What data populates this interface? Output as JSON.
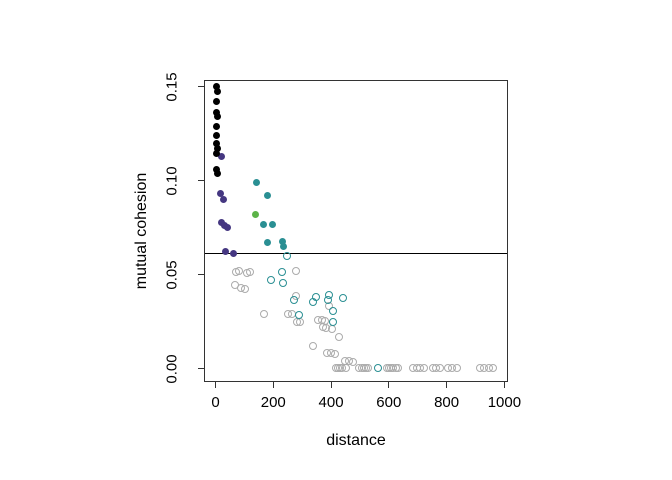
{
  "figure": {
    "background": "#ffffff",
    "frame_color": "#333333",
    "threshold_line_color": "#000000"
  },
  "chart_data": {
    "type": "scatter",
    "title": "",
    "xlabel": "distance",
    "ylabel": "mutual cohesion",
    "xlim": [
      -40,
      1015
    ],
    "ylim": [
      -0.0075,
      0.1535
    ],
    "x_ticks": [
      0,
      200,
      400,
      600,
      800,
      1000
    ],
    "x_tick_labels": [
      "0",
      "200",
      "400",
      "600",
      "800",
      "1000"
    ],
    "y_ticks": [
      0.0,
      0.05,
      0.1,
      0.15
    ],
    "y_tick_labels": [
      "0.00",
      "0.05",
      "0.10",
      "0.15"
    ],
    "grid": false,
    "legend": "none",
    "hline_y": 0.0613,
    "series": [
      {
        "name": "gray-open",
        "marker": "open",
        "color": "#ABABAB",
        "points": [
          [
            72,
            0.0515
          ],
          [
            80,
            0.0517
          ],
          [
            108,
            0.051
          ],
          [
            118,
            0.0512
          ],
          [
            280,
            0.0517
          ],
          [
            66,
            0.0444
          ],
          [
            87,
            0.0429
          ],
          [
            103,
            0.0425
          ],
          [
            167,
            0.029
          ],
          [
            252,
            0.029
          ],
          [
            264,
            0.029
          ],
          [
            282,
            0.0248
          ],
          [
            294,
            0.0248
          ],
          [
            280,
            0.0385
          ],
          [
            356,
            0.0259
          ],
          [
            368,
            0.026
          ],
          [
            379,
            0.0254
          ],
          [
            371,
            0.0223
          ],
          [
            383,
            0.0218
          ],
          [
            394,
            0.0331
          ],
          [
            405,
            0.021
          ],
          [
            426,
            0.0165
          ],
          [
            339,
            0.0122
          ],
          [
            387,
            0.0082
          ],
          [
            399,
            0.0082
          ],
          [
            414,
            0.0078
          ],
          [
            448,
            0.004
          ],
          [
            462,
            0.004
          ],
          [
            476,
            0.0037
          ],
          [
            417,
            0.0005
          ],
          [
            424,
            0.0005
          ],
          [
            431,
            0.0005
          ],
          [
            438,
            0.0005
          ],
          [
            453,
            0.0005
          ],
          [
            498,
            0.0005
          ],
          [
            506,
            0.0005
          ],
          [
            514,
            0.0005
          ],
          [
            522,
            0.0005
          ],
          [
            529,
            0.0005
          ],
          [
            595,
            0.0005
          ],
          [
            602,
            0.0005
          ],
          [
            609,
            0.0005
          ],
          [
            616,
            0.0005
          ],
          [
            624,
            0.0005
          ],
          [
            633,
            0.0005
          ],
          [
            685,
            0.0005
          ],
          [
            697,
            0.0005
          ],
          [
            709,
            0.0005
          ],
          [
            721,
            0.0005
          ],
          [
            754,
            0.0005
          ],
          [
            765,
            0.0005
          ],
          [
            777,
            0.0005
          ],
          [
            806,
            0.0005
          ],
          [
            820,
            0.0005
          ],
          [
            836,
            0.0005
          ],
          [
            916,
            0.0005
          ],
          [
            929,
            0.0005
          ],
          [
            947,
            0.0005
          ],
          [
            962,
            0.0005
          ]
        ]
      },
      {
        "name": "teal-open",
        "marker": "open",
        "color": "#2A8F93",
        "points": [
          [
            247,
            0.06
          ],
          [
            230,
            0.0514
          ],
          [
            193,
            0.047
          ],
          [
            234,
            0.0456
          ],
          [
            272,
            0.0366
          ],
          [
            290,
            0.0284
          ],
          [
            337,
            0.0355
          ],
          [
            348,
            0.038
          ],
          [
            390,
            0.0362
          ],
          [
            393,
            0.0393
          ],
          [
            440,
            0.0375
          ],
          [
            408,
            0.0305
          ],
          [
            406,
            0.025
          ],
          [
            562,
            0.0005
          ]
        ]
      },
      {
        "name": "teal-filled",
        "marker": "filled",
        "color": "#2A8F93",
        "points": [
          [
            143,
            0.099
          ],
          [
            180,
            0.092
          ],
          [
            166,
            0.0765
          ],
          [
            198,
            0.0768
          ],
          [
            180,
            0.0668
          ],
          [
            232,
            0.0675
          ],
          [
            236,
            0.0648
          ]
        ]
      },
      {
        "name": "green-filled",
        "marker": "filled",
        "color": "#5CB348",
        "points": [
          [
            140,
            0.0818
          ]
        ]
      },
      {
        "name": "purple-filled",
        "marker": "filled",
        "color": "#453781",
        "points": [
          [
            20,
            0.1128
          ],
          [
            16,
            0.093
          ],
          [
            27,
            0.09
          ],
          [
            20,
            0.0775
          ],
          [
            30,
            0.0762
          ],
          [
            40,
            0.0748
          ],
          [
            36,
            0.062
          ],
          [
            62,
            0.0614
          ]
        ]
      },
      {
        "name": "black-filled",
        "marker": "filled",
        "color": "#000000",
        "points": [
          [
            4,
            0.15
          ],
          [
            6,
            0.1472
          ],
          [
            5,
            0.1422
          ],
          [
            4,
            0.136
          ],
          [
            6,
            0.1338
          ],
          [
            5,
            0.1288
          ],
          [
            4,
            0.1238
          ],
          [
            5,
            0.1197
          ],
          [
            6,
            0.117
          ],
          [
            4,
            0.1143
          ],
          [
            5,
            0.106
          ],
          [
            6,
            0.1038
          ]
        ]
      }
    ]
  }
}
